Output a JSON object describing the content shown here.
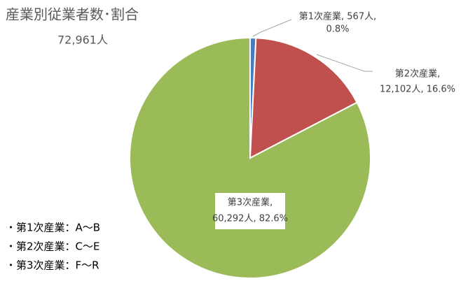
{
  "chart_data": {
    "type": "pie",
    "title": "産業別従業者数･割合",
    "subtitle": "72,961人",
    "values": [
      567,
      12102,
      60292
    ],
    "colors": [
      "#4a7ebb",
      "#c0504d",
      "#9bbb59"
    ],
    "labels": [
      [
        "第1次産業, 567人,",
        "0.8%"
      ],
      [
        "第2次産業,",
        "12,102人, 16.6%"
      ],
      [
        "第3次産業,",
        "60,292人, 82.6%"
      ]
    ],
    "notes": [
      "・第1次産業：A～B",
      "・第2次産業：C～E",
      "・第3次産業：F～R"
    ]
  }
}
